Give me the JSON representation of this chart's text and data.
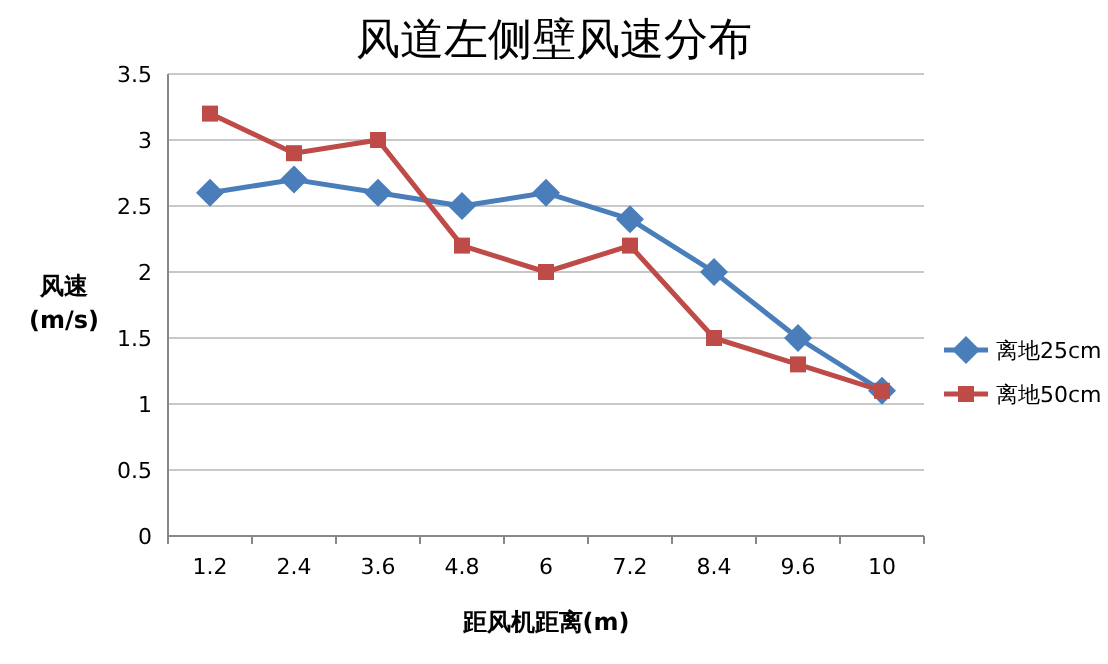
{
  "chart_data": {
    "type": "line",
    "title": "风道左侧壁风速分布",
    "xlabel": "距风机距离(m)",
    "ylabel": "风速\n(m/s)",
    "categories": [
      "1.2",
      "2.4",
      "3.6",
      "4.8",
      "6",
      "7.2",
      "8.4",
      "9.6",
      "10"
    ],
    "series": [
      {
        "name": "离地25cm",
        "color": "#4a7ebb",
        "marker": "diamond",
        "values": [
          2.6,
          2.7,
          2.6,
          2.5,
          2.6,
          2.4,
          2.0,
          1.5,
          1.1
        ]
      },
      {
        "name": "离地50cm",
        "color": "#be4b48",
        "marker": "square",
        "values": [
          3.2,
          2.9,
          3.0,
          2.2,
          2.0,
          2.2,
          1.5,
          1.3,
          1.1
        ]
      }
    ],
    "ylim": [
      0,
      3.5
    ],
    "yticks": [
      0,
      0.5,
      1,
      1.5,
      2,
      2.5,
      3,
      3.5
    ],
    "grid": "y",
    "legend": "right"
  }
}
